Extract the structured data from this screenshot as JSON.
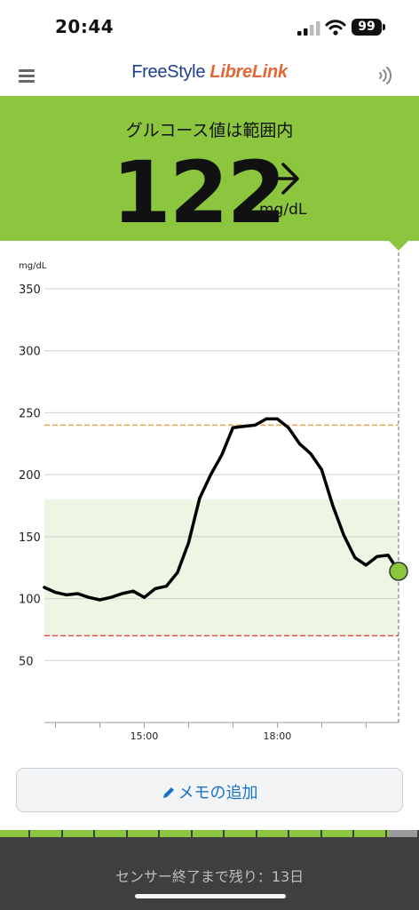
{
  "status_bar": {
    "time": "20:44",
    "battery": "99"
  },
  "header": {
    "logo_part1": "FreeStyle",
    "logo_part2": "LibreLink"
  },
  "glucose": {
    "status_text": "グルコース値は範囲内",
    "value": "122",
    "unit": "mg/dL",
    "trend": "steady-right-arrow",
    "panel_color": "#8cc63f"
  },
  "chart_data": {
    "type": "line",
    "ylabel": "mg/dL",
    "y_ticks": [
      50,
      100,
      150,
      200,
      250,
      300,
      350
    ],
    "ylim": [
      0,
      360
    ],
    "x_tick_labels": [
      "15:00",
      "18:00"
    ],
    "target_range": [
      70,
      180
    ],
    "high_threshold": 240,
    "low_threshold": 70,
    "series": [
      {
        "x": [
          "12:45",
          "13:00",
          "13:15",
          "13:30",
          "13:45",
          "14:00",
          "14:15",
          "14:30",
          "14:45",
          "15:00",
          "15:15",
          "15:30",
          "15:45",
          "16:00",
          "16:15",
          "16:30",
          "16:45",
          "17:00",
          "17:15",
          "17:30",
          "17:45",
          "18:00",
          "18:15",
          "18:30",
          "18:45",
          "19:00",
          "19:15",
          "19:30",
          "19:45",
          "20:00",
          "20:15",
          "20:30",
          "20:44"
        ],
        "y": [
          109,
          105,
          103,
          104,
          101,
          99,
          101,
          104,
          106,
          101,
          108,
          110,
          121,
          145,
          181,
          200,
          216,
          238,
          239,
          240,
          245,
          245,
          238,
          225,
          217,
          204,
          175,
          151,
          133,
          127,
          134,
          135,
          122
        ]
      }
    ],
    "colors": {
      "line": "#000000",
      "target_band": "#edf6e3",
      "high_line": "#f0a04b",
      "low_line": "#e04a45",
      "marker": "#8cc63f"
    },
    "grid": true
  },
  "memo": {
    "label": "メモの追加"
  },
  "sensor": {
    "remaining_text": "センサー終了まで残り：13日"
  }
}
